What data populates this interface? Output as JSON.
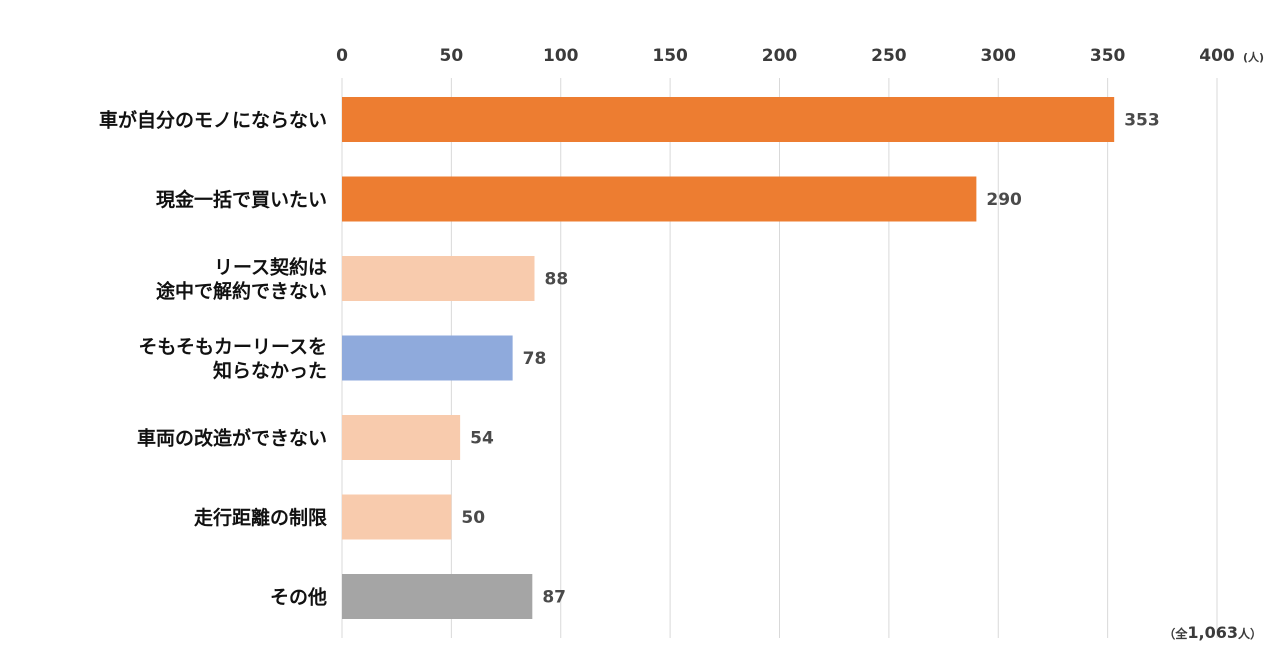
{
  "chart_data": {
    "type": "bar",
    "orientation": "horizontal",
    "unit_label": "(人)",
    "xlim": [
      0,
      400
    ],
    "x_ticks": [
      0,
      50,
      100,
      150,
      200,
      250,
      300,
      350,
      400
    ],
    "grid": true,
    "total_note": {
      "open": "（全",
      "value": "1,063",
      "close": "人）"
    },
    "bars": [
      {
        "label_lines": [
          "車が自分のモノにならない"
        ],
        "value": 353,
        "color": "#ED7D31"
      },
      {
        "label_lines": [
          "現金一括で買いたい"
        ],
        "value": 290,
        "color": "#ED7D31"
      },
      {
        "label_lines": [
          "リース契約は",
          "途中で解約できない"
        ],
        "value": 88,
        "color": "#F8CBAD"
      },
      {
        "label_lines": [
          "そもそもカーリースを",
          "知らなかった"
        ],
        "value": 78,
        "color": "#8FAADC"
      },
      {
        "label_lines": [
          "車両の改造ができない"
        ],
        "value": 54,
        "color": "#F8CBAD"
      },
      {
        "label_lines": [
          "走行距離の制限"
        ],
        "value": 50,
        "color": "#F8CBAD"
      },
      {
        "label_lines": [
          "その他"
        ],
        "value": 87,
        "color": "#A5A5A5"
      }
    ]
  }
}
